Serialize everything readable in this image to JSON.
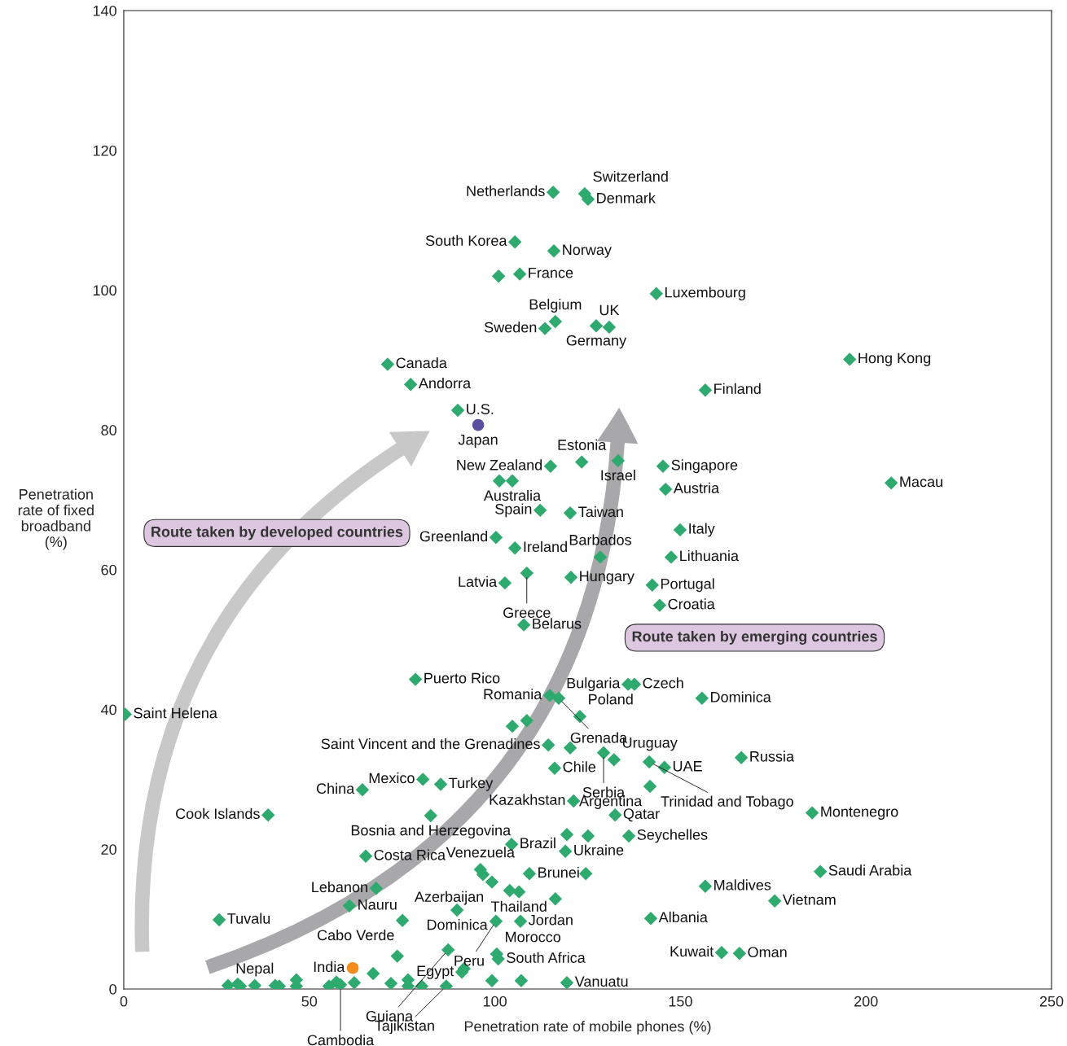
{
  "chart_data": {
    "type": "scatter",
    "xlabel": "Penetration rate of mobile phones (%)",
    "ylabel": "Penetration\nrate of fixed\nbroadband\n(%)",
    "xlim": [
      0,
      250
    ],
    "ylim": [
      0,
      140
    ],
    "xticks": [
      0,
      50,
      100,
      150,
      200,
      250
    ],
    "yticks": [
      0,
      20,
      40,
      60,
      80,
      100,
      120,
      140
    ],
    "grid": false,
    "marker": "diamond",
    "series": [
      {
        "color": "#2eaa6e",
        "x": [
          115.7,
          124.2,
          125.1,
          105.4,
          115.9,
          106.7,
          101.0,
          143.5,
          116.3,
          113.5,
          127.3,
          130.8,
          195.6,
          71.1,
          77.3,
          156.7,
          90.0,
          115.0,
          123.4,
          133.2,
          145.3,
          206.8,
          104.7,
          101.2,
          146.0,
          112.2,
          120.3,
          149.9,
          100.3,
          105.4,
          128.4,
          147.5,
          108.6,
          120.5,
          102.7,
          142.4,
          144.4,
          107.8,
          78.6,
          135.9,
          137.6,
          114.8,
          117.2,
          155.8,
          0.4,
          122.9,
          104.7,
          108.6,
          114.4,
          120.3,
          129.3,
          132.1,
          141.6,
          145.7,
          166.4,
          116.1,
          80.6,
          85.4,
          64.3,
          141.8,
          121.2,
          82.7,
          38.9,
          132.4,
          185.5,
          104.5,
          119.4,
          125.1,
          136.1,
          119.0,
          65.2,
          96.1,
          96.8,
          99.2,
          109.3,
          124.5,
          187.7,
          68.0,
          106.5,
          104.0,
          156.7,
          116.3,
          175.4,
          60.8,
          89.8,
          25.7,
          75.1,
          142.0,
          106.9,
          100.3,
          87.4,
          100.5,
          100.9,
          161.1,
          165.9,
          91.1,
          91.7,
          73.7,
          67.2,
          119.4,
          99.2,
          107.1,
          28.1,
          30.7,
          31.4,
          35.3,
          40.8,
          41.9,
          46.5,
          46.5,
          55.3,
          57.3,
          58.4,
          62.1,
          72.0,
          76.6,
          76.6,
          80.3,
          86.9
        ],
        "values": [
          114.0,
          113.8,
          113.0,
          106.9,
          105.6,
          102.3,
          102.0,
          99.5,
          95.5,
          94.5,
          94.9,
          94.7,
          90.1,
          89.4,
          86.5,
          85.7,
          82.8,
          74.8,
          75.4,
          75.6,
          74.8,
          72.4,
          72.7,
          72.7,
          71.5,
          68.5,
          68.1,
          65.7,
          64.6,
          63.1,
          61.8,
          61.8,
          59.5,
          58.9,
          58.1,
          57.8,
          54.9,
          52.1,
          44.3,
          43.6,
          43.6,
          42.0,
          41.6,
          41.6,
          39.3,
          39.0,
          37.6,
          38.4,
          34.9,
          34.5,
          33.8,
          32.8,
          32.5,
          31.7,
          33.1,
          31.6,
          30.0,
          29.3,
          28.5,
          29.0,
          26.9,
          24.8,
          24.9,
          24.9,
          25.2,
          20.7,
          22.1,
          21.9,
          21.9,
          19.7,
          19.0,
          17.1,
          16.4,
          15.3,
          16.5,
          16.5,
          16.8,
          14.4,
          13.9,
          14.1,
          14.7,
          12.9,
          12.6,
          11.9,
          11.3,
          9.9,
          9.8,
          10.1,
          9.7,
          9.7,
          5.6,
          5.0,
          4.3,
          5.2,
          5.1,
          2.4,
          2.9,
          4.7,
          2.2,
          0.9,
          1.2,
          1.2,
          0.5,
          0.7,
          0.4,
          0.5,
          0.5,
          0.4,
          1.3,
          0.4,
          0.4,
          1.0,
          0.6,
          0.9,
          0.8,
          1.3,
          0.4,
          0.4,
          0.4
        ]
      },
      {
        "color": "#5a4ea0",
        "marker": "circle",
        "x": [
          95.5
        ],
        "values": [
          80.7
        ]
      },
      {
        "color": "#f28c1e",
        "marker": "circle",
        "x": [
          61.7
        ],
        "values": [
          3.0
        ]
      }
    ],
    "annotations": [
      "Route taken by developed countries",
      "Route taken by emerging countries",
      {
        "text": "Netherlands",
        "x": 115.7,
        "y": 114.0
      },
      {
        "text": "Switzerland",
        "x": 124.2,
        "y": 113.8
      },
      {
        "text": "Denmark",
        "x": 125.1,
        "y": 113.0
      },
      {
        "text": "South Korea",
        "x": 105.4,
        "y": 106.9
      },
      {
        "text": "Norway",
        "x": 115.9,
        "y": 105.6
      },
      {
        "text": "France",
        "x": 106.7,
        "y": 102.3
      },
      {
        "text": "Luxembourg",
        "x": 143.5,
        "y": 99.5
      },
      {
        "text": "Belgium",
        "x": 116.3,
        "y": 95.5
      },
      {
        "text": "Sweden",
        "x": 113.5,
        "y": 94.5
      },
      {
        "text": "Germany",
        "x": 127.3,
        "y": 94.9
      },
      {
        "text": "UK",
        "x": 130.8,
        "y": 94.7
      },
      {
        "text": "Hong Kong",
        "x": 195.6,
        "y": 90.1
      },
      {
        "text": "Canada",
        "x": 71.1,
        "y": 89.4
      },
      {
        "text": "Andorra",
        "x": 77.3,
        "y": 86.5
      },
      {
        "text": "Finland",
        "x": 156.7,
        "y": 85.7
      },
      {
        "text": "U.S.",
        "x": 90.0,
        "y": 82.8
      },
      {
        "text": "Japan",
        "x": 95.5,
        "y": 80.7
      },
      {
        "text": "New Zealand",
        "x": 115.0,
        "y": 74.8
      },
      {
        "text": "Estonia",
        "x": 123.4,
        "y": 75.4
      },
      {
        "text": "Israel",
        "x": 133.2,
        "y": 75.6
      },
      {
        "text": "Singapore",
        "x": 145.3,
        "y": 74.8
      },
      {
        "text": "Macau",
        "x": 206.8,
        "y": 72.4
      },
      {
        "text": "Australia",
        "x": 104.7,
        "y": 72.7
      },
      {
        "text": "Austria",
        "x": 146.0,
        "y": 71.5
      },
      {
        "text": "Spain",
        "x": 112.2,
        "y": 68.5
      },
      {
        "text": "Taiwan",
        "x": 120.3,
        "y": 68.1
      },
      {
        "text": "Italy",
        "x": 149.9,
        "y": 65.7
      },
      {
        "text": "Greenland",
        "x": 100.3,
        "y": 64.6
      },
      {
        "text": "Ireland",
        "x": 105.4,
        "y": 63.1
      },
      {
        "text": "Barbados",
        "x": 128.4,
        "y": 61.8
      },
      {
        "text": "Lithuania",
        "x": 147.5,
        "y": 61.8
      },
      {
        "text": "Greece",
        "x": 108.6,
        "y": 59.5
      },
      {
        "text": "Hungary",
        "x": 120.5,
        "y": 58.9
      },
      {
        "text": "Latvia",
        "x": 102.7,
        "y": 58.1
      },
      {
        "text": "Portugal",
        "x": 142.4,
        "y": 57.8
      },
      {
        "text": "Croatia",
        "x": 144.4,
        "y": 54.9
      },
      {
        "text": "Belarus",
        "x": 107.8,
        "y": 52.1
      },
      {
        "text": "Puerto Rico",
        "x": 78.6,
        "y": 44.3
      },
      {
        "text": "Bulgaria",
        "x": 135.9,
        "y": 43.6
      },
      {
        "text": "Czech",
        "x": 137.6,
        "y": 43.6
      },
      {
        "text": "Romania",
        "x": 114.8,
        "y": 42.0
      },
      {
        "text": "Grenada",
        "x": 117.2,
        "y": 41.6
      },
      {
        "text": "Dominica",
        "x": 155.8,
        "y": 41.6
      },
      {
        "text": "Saint Helena",
        "x": 0.4,
        "y": 39.3
      },
      {
        "text": "Poland",
        "x": 122.9,
        "y": 39.0
      },
      {
        "text": "Saint Vincent and the Grenadines",
        "x": 114.4,
        "y": 34.9
      },
      {
        "text": "Serbia",
        "x": 129.3,
        "y": 33.8
      },
      {
        "text": "Uruguay",
        "x": 132.1,
        "y": 32.8
      },
      {
        "text": "Trinidad and Tobago",
        "x": 141.6,
        "y": 32.5
      },
      {
        "text": "UAE",
        "x": 145.7,
        "y": 31.7
      },
      {
        "text": "Russia",
        "x": 166.4,
        "y": 33.1
      },
      {
        "text": "Chile",
        "x": 116.1,
        "y": 31.6
      },
      {
        "text": "Mexico",
        "x": 80.6,
        "y": 30.0
      },
      {
        "text": "Turkey",
        "x": 85.4,
        "y": 29.3
      },
      {
        "text": "China",
        "x": 64.3,
        "y": 28.5
      },
      {
        "text": "Argentina",
        "x": 141.8,
        "y": 29.0
      },
      {
        "text": "Kazakhstan",
        "x": 121.2,
        "y": 26.9
      },
      {
        "text": "Bosnia and Herzegovina",
        "x": 82.7,
        "y": 24.8
      },
      {
        "text": "Cook Islands",
        "x": 38.9,
        "y": 24.9
      },
      {
        "text": "Qatar",
        "x": 132.4,
        "y": 24.9
      },
      {
        "text": "Montenegro",
        "x": 185.5,
        "y": 25.2
      },
      {
        "text": "Brazil",
        "x": 104.5,
        "y": 20.7
      },
      {
        "text": "Seychelles",
        "x": 136.1,
        "y": 21.9
      },
      {
        "text": "Ukraine",
        "x": 119.0,
        "y": 19.7
      },
      {
        "text": "Costa Rica",
        "x": 65.2,
        "y": 19.0
      },
      {
        "text": "Venezuela",
        "x": 96.1,
        "y": 17.1
      },
      {
        "text": "Azerbaijan",
        "x": 99.2,
        "y": 15.3
      },
      {
        "text": "Brunei",
        "x": 109.3,
        "y": 16.5
      },
      {
        "text": "Saudi Arabia",
        "x": 187.7,
        "y": 16.8
      },
      {
        "text": "Lebanon",
        "x": 68.0,
        "y": 14.4
      },
      {
        "text": "Thailand",
        "x": 106.5,
        "y": 13.9
      },
      {
        "text": "Maldives",
        "x": 156.7,
        "y": 14.7
      },
      {
        "text": "Vietnam",
        "x": 175.4,
        "y": 12.6
      },
      {
        "text": "Nauru",
        "x": 60.8,
        "y": 11.9
      },
      {
        "text": "Dominica",
        "x": 89.8,
        "y": 11.3
      },
      {
        "text": "Tuvalu",
        "x": 25.7,
        "y": 9.9
      },
      {
        "text": "Cabo Verde",
        "x": 75.1,
        "y": 9.8
      },
      {
        "text": "Albania",
        "x": 142.0,
        "y": 10.1
      },
      {
        "text": "Jordan",
        "x": 106.9,
        "y": 9.7
      },
      {
        "text": "Peru",
        "x": 100.3,
        "y": 9.7
      },
      {
        "text": "Guiana",
        "x": 87.4,
        "y": 5.6
      },
      {
        "text": "Morocco",
        "x": 100.5,
        "y": 5.0
      },
      {
        "text": "South Africa",
        "x": 100.9,
        "y": 4.3
      },
      {
        "text": "Kuwait",
        "x": 161.1,
        "y": 5.2
      },
      {
        "text": "Oman",
        "x": 165.9,
        "y": 5.1
      },
      {
        "text": "Egypt",
        "x": 91.1,
        "y": 2.4
      },
      {
        "text": "India",
        "x": 61.7,
        "y": 3.0
      },
      {
        "text": "Vanuatu",
        "x": 119.4,
        "y": 0.9
      },
      {
        "text": "Nepal",
        "x": 35.3,
        "y": 0.5
      },
      {
        "text": "Cambodia",
        "x": 58.4,
        "y": 0.6
      },
      {
        "text": "Tajikistan",
        "x": 86.9,
        "y": 0.4
      }
    ]
  }
}
